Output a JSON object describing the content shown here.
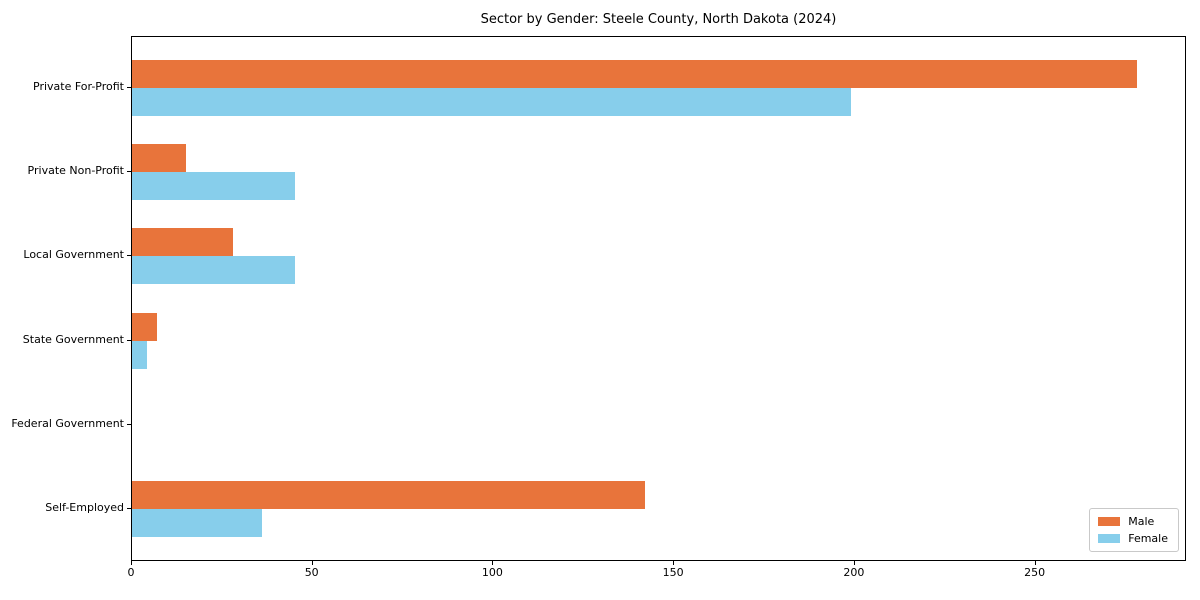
{
  "chart_data": {
    "type": "bar",
    "orientation": "horizontal",
    "title": "Sector by Gender: Steele County, North Dakota (2024)",
    "categories": [
      "Private For-Profit",
      "Private Non-Profit",
      "Local Government",
      "State Government",
      "Federal Government",
      "Self-Employed"
    ],
    "series": [
      {
        "name": "Male",
        "color": "#e8743b",
        "values": [
          278,
          15,
          28,
          7,
          0,
          142
        ]
      },
      {
        "name": "Female",
        "color": "#87ceeb",
        "values": [
          199,
          45,
          45,
          4,
          0,
          36
        ]
      }
    ],
    "xlabel": "",
    "ylabel": "",
    "xlim": [
      0,
      291.9
    ],
    "xticks": [
      0,
      50,
      100,
      150,
      200,
      250
    ],
    "grid": false,
    "legend": {
      "position": "lower right"
    }
  }
}
